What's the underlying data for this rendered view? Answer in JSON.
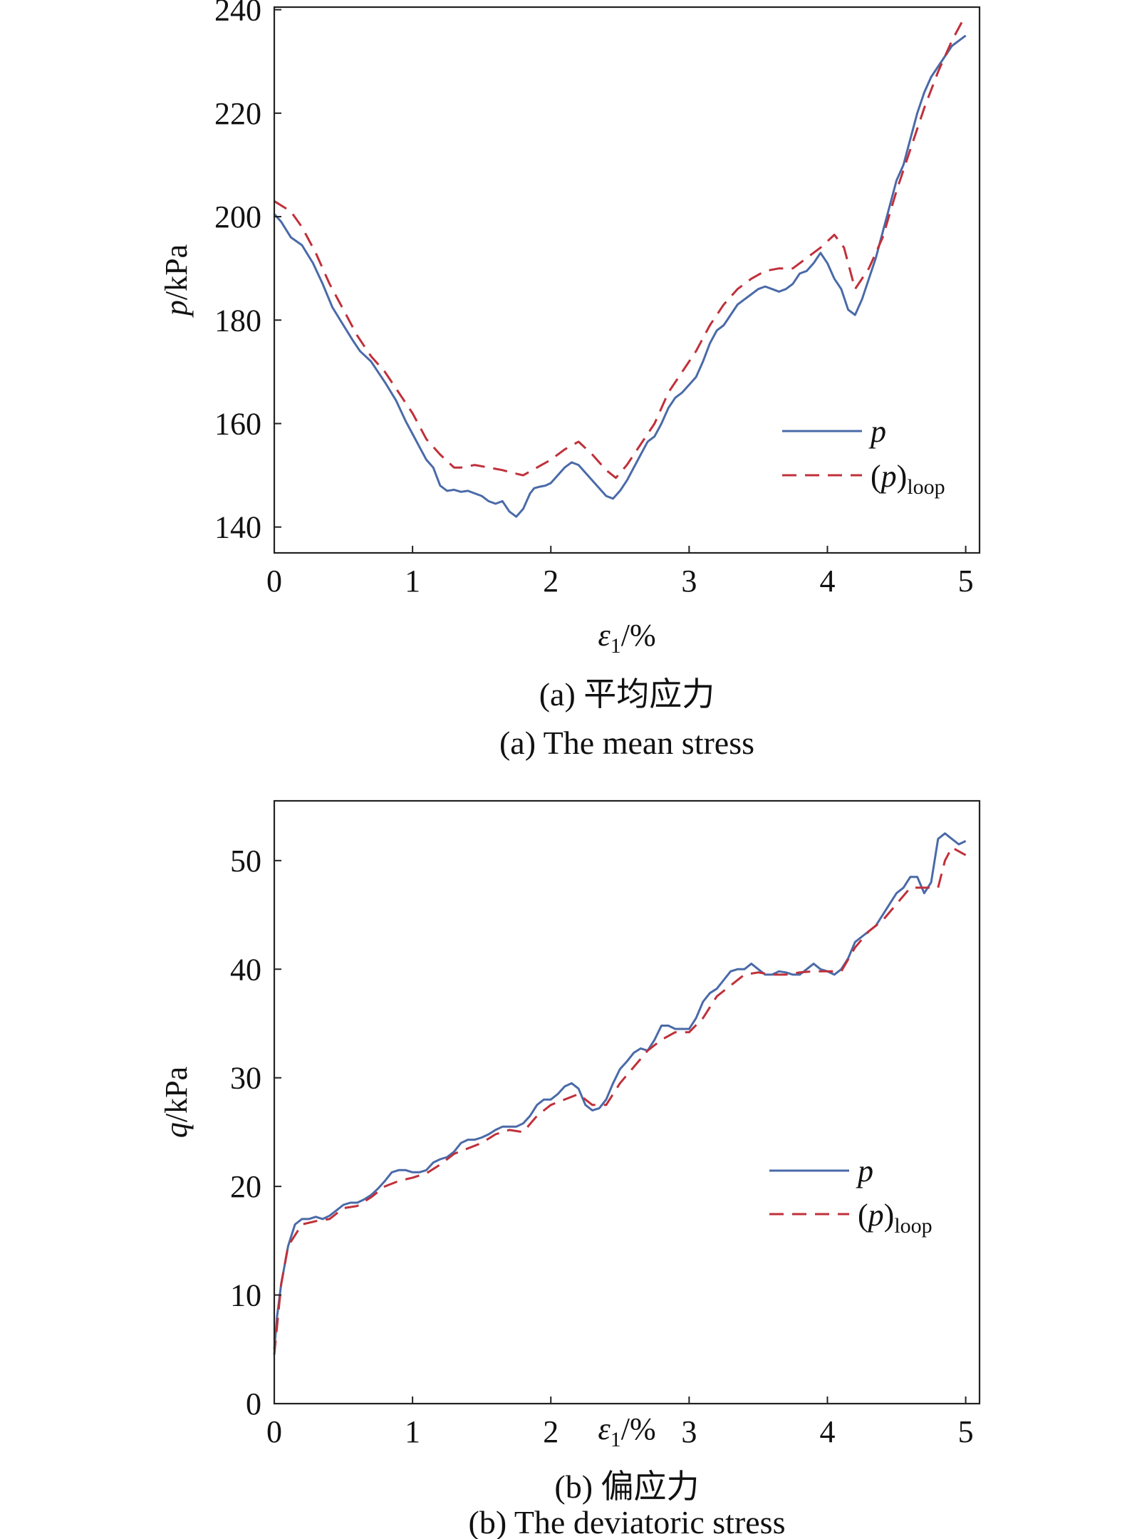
{
  "chart_data": [
    {
      "type": "line",
      "caption_cn": "(a) 平均应力",
      "caption_en": "(a) The mean stress",
      "ylabel_var": "p",
      "ylabel_unit": "/kPa",
      "xlabel_var": "ε",
      "xlabel_sub": "1",
      "xlabel_unit": "/%",
      "xlim": [
        0,
        5.1
      ],
      "ylim": [
        135,
        240.5
      ],
      "xticks": [
        0,
        1,
        2,
        3,
        4,
        5
      ],
      "yticks": [
        140,
        160,
        180,
        200,
        220,
        240
      ],
      "legend_position": "right",
      "grid": false,
      "series": [
        {
          "name": "p",
          "color": "#4a6aa8",
          "style": "solid",
          "x": [
            0,
            0.05,
            0.12,
            0.2,
            0.28,
            0.35,
            0.42,
            0.5,
            0.57,
            0.62,
            0.7,
            0.75,
            0.8,
            0.88,
            0.95,
            1.0,
            1.05,
            1.1,
            1.15,
            1.2,
            1.25,
            1.3,
            1.35,
            1.4,
            1.45,
            1.5,
            1.55,
            1.6,
            1.65,
            1.7,
            1.75,
            1.8,
            1.85,
            1.88,
            1.92,
            1.96,
            2.0,
            2.05,
            2.1,
            2.15,
            2.2,
            2.25,
            2.3,
            2.35,
            2.4,
            2.45,
            2.5,
            2.55,
            2.6,
            2.65,
            2.7,
            2.75,
            2.8,
            2.85,
            2.9,
            2.95,
            3.0,
            3.05,
            3.1,
            3.15,
            3.2,
            3.25,
            3.3,
            3.35,
            3.4,
            3.45,
            3.5,
            3.55,
            3.6,
            3.65,
            3.7,
            3.75,
            3.8,
            3.85,
            3.9,
            3.95,
            4.0,
            4.05,
            4.1,
            4.15,
            4.2,
            4.25,
            4.3,
            4.35,
            4.4,
            4.45,
            4.5,
            4.55,
            4.6,
            4.65,
            4.7,
            4.75,
            4.8,
            4.85,
            4.9,
            4.95,
            5.0
          ],
          "y": [
            200.5,
            199,
            196,
            194.5,
            191,
            187,
            182.5,
            179,
            176,
            174,
            172,
            170,
            168,
            164.5,
            160.5,
            158,
            155.5,
            153,
            151.5,
            148,
            147,
            147.2,
            146.8,
            147,
            146.5,
            146,
            145,
            144.5,
            145,
            143,
            142,
            143.5,
            146.5,
            147.5,
            147.8,
            148,
            148.5,
            150,
            151.5,
            152.5,
            152,
            150.5,
            149,
            147.5,
            146,
            145.5,
            147,
            149,
            151.5,
            154,
            156.5,
            157.5,
            160,
            163,
            165,
            166,
            167.5,
            169,
            172,
            175.5,
            178,
            179,
            181,
            183,
            184,
            185,
            186,
            186.5,
            186,
            185.5,
            186,
            187,
            189,
            189.5,
            191,
            193,
            191,
            188,
            186,
            182,
            181,
            184,
            188,
            192,
            197,
            202,
            207,
            210,
            215,
            220,
            224,
            227,
            229,
            231,
            233,
            234,
            235
          ]
        },
        {
          "name": "(p)loop",
          "color": "#c0303a",
          "style": "dashed",
          "x": [
            0,
            0.12,
            0.2,
            0.3,
            0.4,
            0.5,
            0.6,
            0.7,
            0.8,
            0.9,
            1.0,
            1.1,
            1.2,
            1.3,
            1.35,
            1.45,
            1.55,
            1.65,
            1.72,
            1.8,
            1.9,
            2.0,
            2.1,
            2.2,
            2.3,
            2.4,
            2.47,
            2.55,
            2.65,
            2.75,
            2.85,
            2.95,
            3.05,
            3.15,
            3.25,
            3.35,
            3.45,
            3.55,
            3.65,
            3.75,
            3.85,
            3.95,
            4.05,
            4.12,
            4.2,
            4.3,
            4.4,
            4.5,
            4.6,
            4.7,
            4.8,
            4.9,
            5.0
          ],
          "y": [
            203,
            201,
            198,
            193,
            187,
            182,
            177,
            173,
            170,
            166,
            162,
            157,
            154,
            151.5,
            151.5,
            152,
            151.5,
            151,
            150.5,
            150,
            151.5,
            153,
            155,
            156.5,
            154,
            151,
            149.5,
            152,
            156,
            160,
            166,
            170,
            174,
            179,
            183,
            186,
            188,
            189.5,
            190,
            190,
            192,
            194,
            196.5,
            194,
            186,
            190,
            196,
            205,
            213,
            221,
            228,
            234,
            239
          ]
        }
      ]
    },
    {
      "type": "line",
      "caption_cn": "(b) 偏应力",
      "caption_en": "(b) The deviatoric stress",
      "ylabel_var": "q",
      "ylabel_unit": "/kPa",
      "xlabel_var": "ε",
      "xlabel_sub": "1",
      "xlabel_unit": "/%",
      "xlim": [
        0,
        5.1
      ],
      "ylim": [
        0,
        55.5
      ],
      "xticks": [
        0,
        1,
        2,
        3,
        4,
        5
      ],
      "yticks": [
        0,
        10,
        20,
        30,
        40,
        50
      ],
      "legend_position": "right",
      "grid": false,
      "series": [
        {
          "name": "p",
          "color": "#4a6aa8",
          "style": "solid",
          "x": [
            0,
            0.02,
            0.05,
            0.1,
            0.15,
            0.2,
            0.25,
            0.3,
            0.35,
            0.4,
            0.45,
            0.5,
            0.55,
            0.6,
            0.65,
            0.7,
            0.75,
            0.8,
            0.85,
            0.9,
            0.95,
            1.0,
            1.05,
            1.1,
            1.15,
            1.2,
            1.25,
            1.3,
            1.35,
            1.4,
            1.45,
            1.5,
            1.55,
            1.6,
            1.65,
            1.7,
            1.75,
            1.8,
            1.85,
            1.9,
            1.95,
            2.0,
            2.05,
            2.1,
            2.15,
            2.2,
            2.25,
            2.3,
            2.35,
            2.4,
            2.45,
            2.5,
            2.55,
            2.6,
            2.65,
            2.7,
            2.75,
            2.8,
            2.85,
            2.9,
            2.95,
            3.0,
            3.05,
            3.1,
            3.15,
            3.2,
            3.25,
            3.3,
            3.35,
            3.4,
            3.45,
            3.5,
            3.55,
            3.6,
            3.65,
            3.7,
            3.75,
            3.8,
            3.85,
            3.9,
            3.95,
            4.0,
            4.05,
            4.1,
            4.15,
            4.2,
            4.25,
            4.3,
            4.35,
            4.4,
            4.45,
            4.5,
            4.55,
            4.6,
            4.65,
            4.7,
            4.75,
            4.8,
            4.85,
            4.9,
            4.95,
            5.0
          ],
          "y": [
            5,
            8,
            11,
            14.5,
            16.5,
            17,
            17,
            17.2,
            17,
            17.3,
            17.8,
            18.3,
            18.5,
            18.5,
            18.8,
            19.2,
            19.8,
            20.5,
            21.3,
            21.5,
            21.5,
            21.3,
            21.3,
            21.5,
            22.2,
            22.5,
            22.7,
            23.2,
            24,
            24.3,
            24.3,
            24.5,
            24.8,
            25.2,
            25.5,
            25.5,
            25.5,
            25.8,
            26.5,
            27.5,
            28,
            28,
            28.5,
            29.2,
            29.5,
            29,
            27.5,
            27,
            27.2,
            28,
            29.5,
            30.8,
            31.5,
            32.3,
            32.7,
            32.5,
            33.5,
            34.8,
            34.8,
            34.5,
            34.5,
            34.5,
            35.5,
            37,
            37.8,
            38.2,
            39,
            39.8,
            40,
            40,
            40.5,
            40,
            39.5,
            39.5,
            39.8,
            39.7,
            39.5,
            39.5,
            40,
            40.5,
            40,
            39.8,
            39.5,
            40,
            41,
            42.5,
            43,
            43.5,
            44,
            45,
            46,
            47,
            47.5,
            48.5,
            48.5,
            47,
            48,
            52,
            52.5,
            52,
            51.5,
            51.8
          ]
        },
        {
          "name": "(p)loop",
          "color": "#c0303a",
          "style": "dashed",
          "x": [
            0,
            0.05,
            0.1,
            0.2,
            0.3,
            0.4,
            0.5,
            0.6,
            0.7,
            0.8,
            0.9,
            1.0,
            1.1,
            1.2,
            1.3,
            1.4,
            1.5,
            1.6,
            1.7,
            1.8,
            1.9,
            2.0,
            2.1,
            2.2,
            2.3,
            2.4,
            2.5,
            2.6,
            2.7,
            2.8,
            2.9,
            3.0,
            3.1,
            3.2,
            3.3,
            3.4,
            3.5,
            3.6,
            3.7,
            3.8,
            3.9,
            4.0,
            4.1,
            4.2,
            4.3,
            4.4,
            4.5,
            4.6,
            4.7,
            4.8,
            4.85,
            4.9,
            5.0
          ],
          "y": [
            4.5,
            11,
            14.5,
            16.5,
            16.8,
            17,
            18,
            18.2,
            19,
            20,
            20.5,
            20.8,
            21.2,
            22,
            23,
            23.5,
            24,
            24.8,
            25.2,
            25,
            26.5,
            27.5,
            28,
            28.5,
            27.5,
            27.5,
            29.5,
            31,
            32.5,
            33.5,
            34.2,
            34.2,
            35.5,
            37.5,
            38.5,
            39.5,
            39.7,
            39.5,
            39.5,
            39.7,
            39.8,
            39.8,
            39.8,
            42,
            43.5,
            44.5,
            46,
            47.5,
            47.5,
            47.5,
            50,
            51.2,
            50.5
          ]
        }
      ]
    }
  ]
}
